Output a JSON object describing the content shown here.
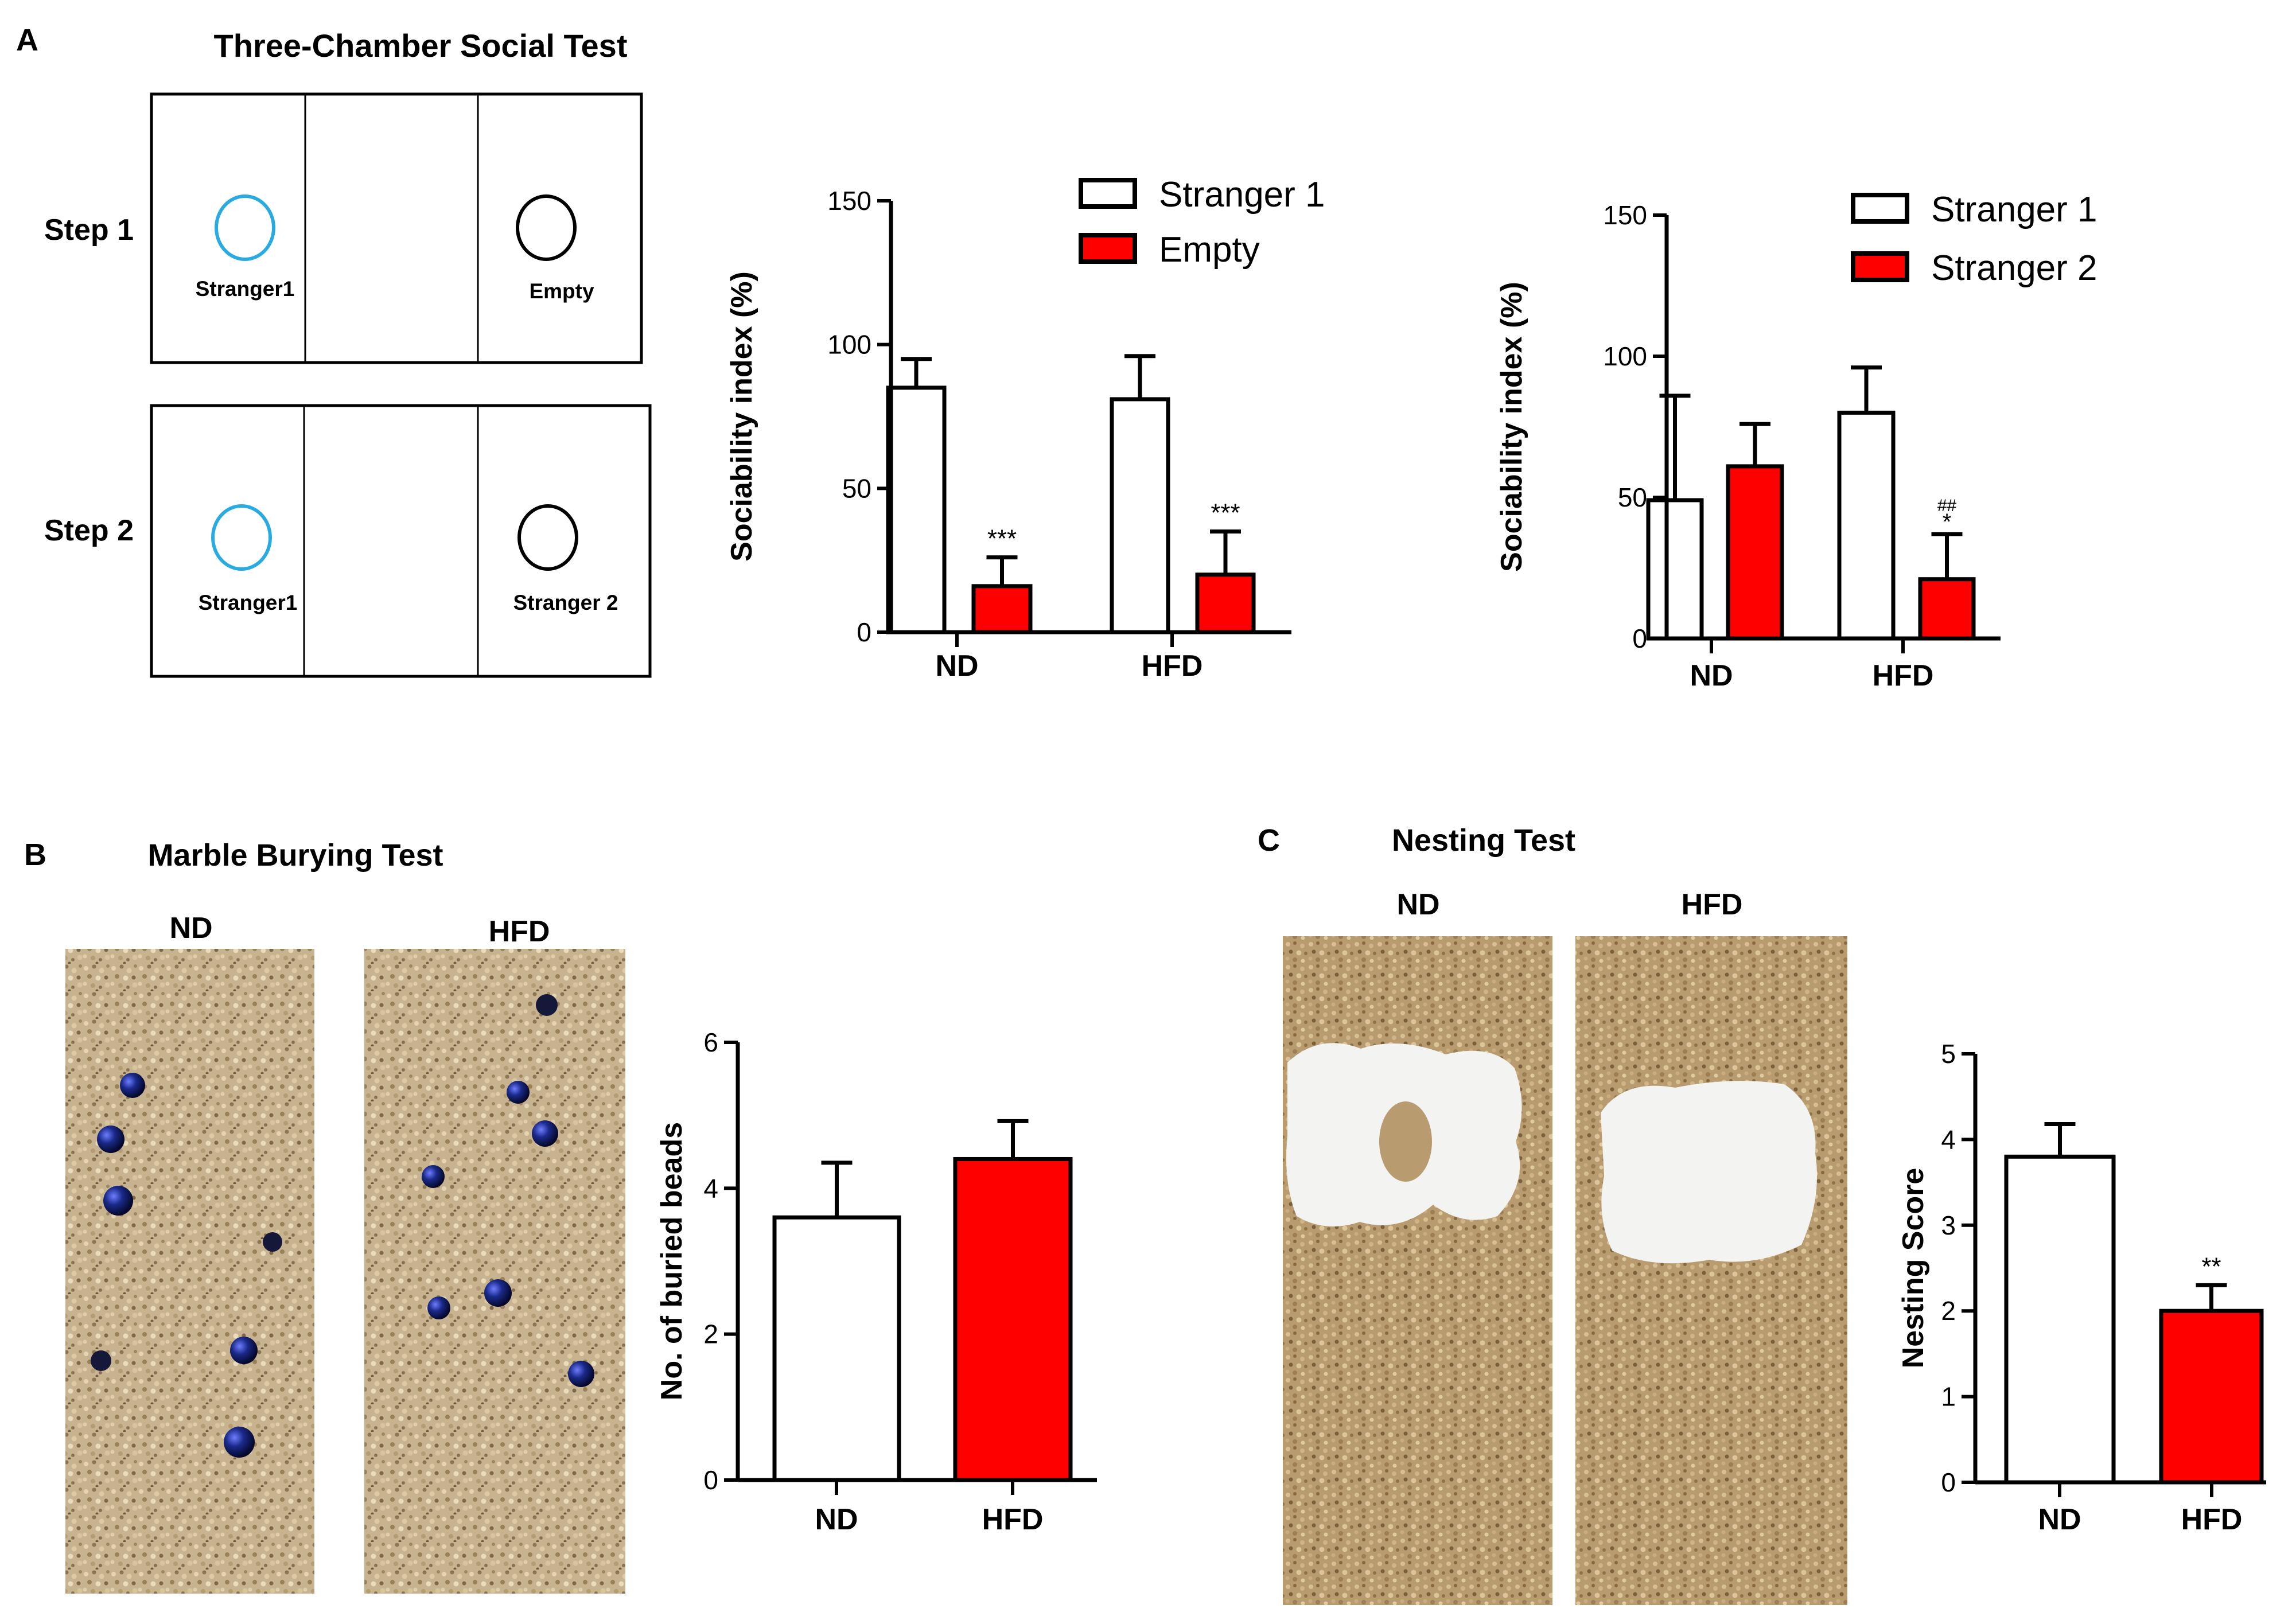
{
  "panels": {
    "A": {
      "letter": "A",
      "title": "Three-Chamber Social Test",
      "step1": {
        "label": "Step 1",
        "left_cup": "Stranger1",
        "right_cup": "Empty"
      },
      "step2": {
        "label": "Step 2",
        "left_cup": "Stranger1",
        "right_cup": "Stranger 2"
      }
    },
    "B": {
      "letter": "B",
      "title": "Marble Burying Test",
      "photo_labels": [
        "ND",
        "HFD"
      ]
    },
    "C": {
      "letter": "C",
      "title": "Nesting Test",
      "photo_labels": [
        "ND",
        "HFD"
      ]
    }
  },
  "colors": {
    "control": "#ffffff",
    "treatment": "#ff0000",
    "stroke": "#000000",
    "cup_stranger1": "#29abe2",
    "bedding": "#c7b38f",
    "marble": "#1a2a8a",
    "nest": "#f3f3f1"
  },
  "chart_data": [
    {
      "id": "sociability_step1",
      "type": "bar",
      "categories": [
        "ND",
        "HFD"
      ],
      "series": [
        {
          "name": "Stranger 1",
          "color": "#ffffff",
          "values": [
            85,
            81
          ],
          "errors": [
            10,
            15
          ],
          "annotations": [
            "",
            ""
          ]
        },
        {
          "name": "Empty",
          "color": "#ff0000",
          "values": [
            16,
            20
          ],
          "errors": [
            10,
            15
          ],
          "annotations": [
            "***",
            "***"
          ]
        }
      ],
      "xlabel": "",
      "ylabel": "Sociability index (%)",
      "ylim": [
        0,
        150
      ],
      "yticks": [
        0,
        50,
        100,
        150
      ],
      "legend": "top-right"
    },
    {
      "id": "sociability_step2",
      "type": "bar",
      "categories": [
        "ND",
        "HFD"
      ],
      "series": [
        {
          "name": "Stranger 1",
          "color": "#ffffff",
          "values": [
            49,
            80
          ],
          "errors": [
            37,
            16
          ],
          "annotations": [
            "",
            ""
          ]
        },
        {
          "name": "Stranger 2",
          "color": "#ff0000",
          "values": [
            61,
            21
          ],
          "errors": [
            15,
            16
          ],
          "annotations": [
            "",
            "##|*"
          ]
        }
      ],
      "xlabel": "",
      "ylabel": "Sociability index (%)",
      "ylim": [
        0,
        150
      ],
      "yticks": [
        0,
        50,
        100,
        150
      ],
      "legend": "top-right"
    },
    {
      "id": "marble_burying",
      "type": "bar",
      "categories": [
        "ND",
        "HFD"
      ],
      "values": [
        3.6,
        4.4
      ],
      "errors": [
        0.75,
        0.52
      ],
      "colors": [
        "#ffffff",
        "#ff0000"
      ],
      "annotations": [
        "",
        ""
      ],
      "xlabel": "",
      "ylabel": "No. of buried beads",
      "ylim": [
        0,
        6
      ],
      "yticks": [
        0,
        2,
        4,
        6
      ]
    },
    {
      "id": "nesting_score",
      "type": "bar",
      "categories": [
        "ND",
        "HFD"
      ],
      "values": [
        3.8,
        2.0
      ],
      "errors": [
        0.38,
        0.3
      ],
      "colors": [
        "#ffffff",
        "#ff0000"
      ],
      "annotations": [
        "",
        "**"
      ],
      "xlabel": "",
      "ylabel": "Nesting Score",
      "ylim": [
        0,
        5
      ],
      "yticks": [
        0,
        1,
        2,
        3,
        4,
        5
      ]
    }
  ]
}
